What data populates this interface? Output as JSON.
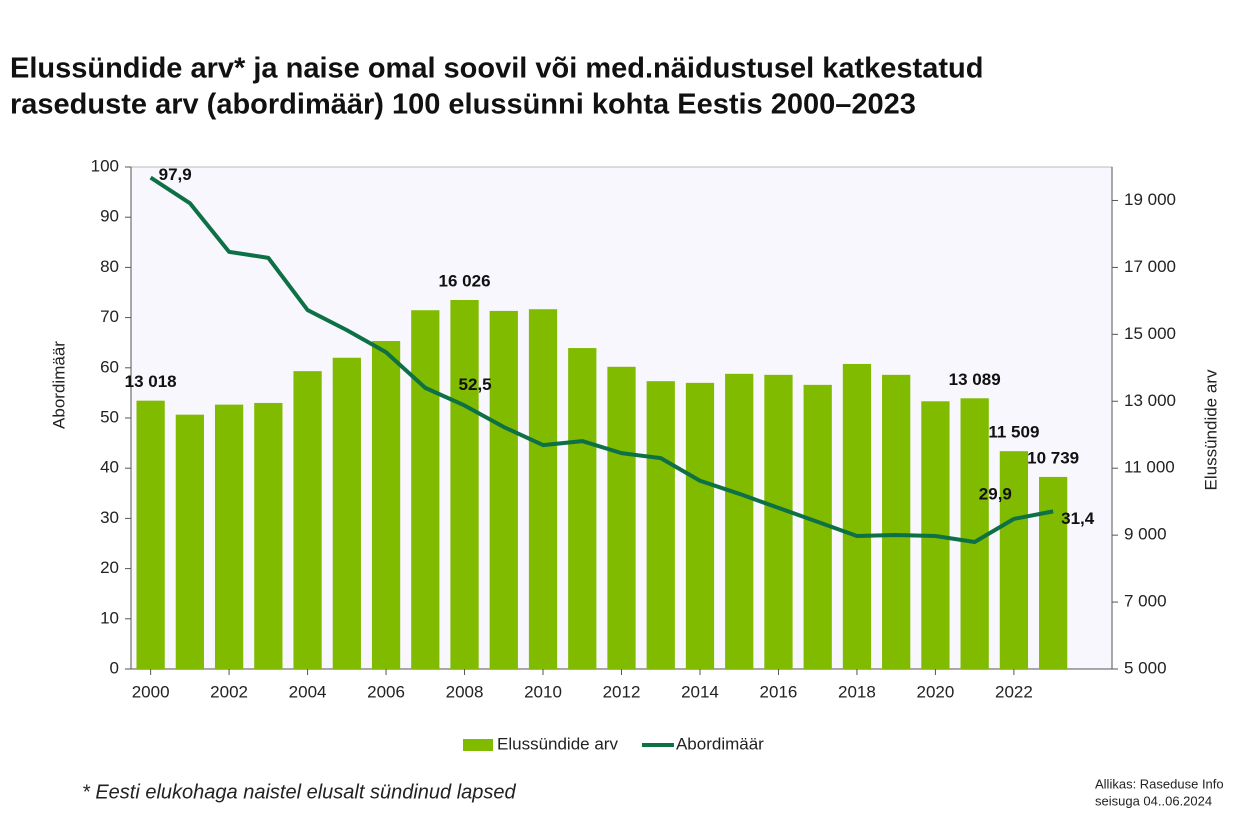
{
  "chart_data": {
    "type": "bar-line",
    "title": [
      "Elussündide arv* ja naise omal soovil või med.näidustusel katkestatud",
      "raseduste arv (abordimäär) 100 elussünni kohta Eestis 2000–2023"
    ],
    "ylabel": "Abordimäär",
    "y2label": "Elussündide arv",
    "x": [
      2000,
      2001,
      2002,
      2003,
      2004,
      2005,
      2006,
      2007,
      2008,
      2009,
      2010,
      2011,
      2012,
      2013,
      2014,
      2015,
      2016,
      2017,
      2018,
      2019,
      2020,
      2021,
      2022,
      2023
    ],
    "xlim": [
      1999.5,
      2024.5
    ],
    "xticks": [
      2000,
      2002,
      2004,
      2006,
      2008,
      2010,
      2012,
      2014,
      2016,
      2018,
      2020,
      2022
    ],
    "ylim": [
      0,
      100
    ],
    "yticks": [
      0,
      10,
      20,
      30,
      40,
      50,
      60,
      70,
      80,
      90,
      100
    ],
    "y2lim": [
      5000,
      20000
    ],
    "y2ticks": [
      {
        "value": 5000,
        "label": "5 000"
      },
      {
        "value": 7000,
        "label": "7 000"
      },
      {
        "value": 9000,
        "label": "9 000"
      },
      {
        "value": 11000,
        "label": "11 000"
      },
      {
        "value": 13000,
        "label": "13 000"
      },
      {
        "value": 15000,
        "label": "15 000"
      },
      {
        "value": 17000,
        "label": "17 000"
      },
      {
        "value": 19000,
        "label": "19 000"
      }
    ],
    "series": [
      {
        "name": "Elussündide arv",
        "type": "bar",
        "axis": "y2",
        "color": "#80bb00",
        "values": [
          13018,
          12600,
          12900,
          12950,
          13900,
          14300,
          14800,
          15720,
          16026,
          15700,
          15750,
          14590,
          14030,
          13600,
          13550,
          13820,
          13790,
          13490,
          14115,
          13790,
          13000,
          13089,
          11509,
          10739
        ],
        "value_labels": [
          "13 018",
          null,
          null,
          null,
          null,
          null,
          null,
          null,
          "16 026",
          null,
          null,
          null,
          null,
          null,
          null,
          null,
          null,
          null,
          null,
          null,
          null,
          "13 089",
          "11 509",
          "10 739"
        ]
      },
      {
        "name": "Abordimäär",
        "type": "line",
        "color": "#0e7045",
        "values": [
          97.9,
          92.8,
          83.1,
          81.9,
          71.5,
          67.5,
          63.1,
          56,
          52.5,
          48.2,
          44.6,
          45.4,
          43,
          42,
          37.5,
          34.9,
          32.1,
          29.3,
          26.5,
          26.7,
          26.5,
          25.3,
          29.9,
          31.4
        ],
        "value_labels": [
          "97,9",
          null,
          null,
          null,
          null,
          null,
          null,
          null,
          "52,5",
          null,
          null,
          null,
          null,
          null,
          null,
          null,
          null,
          null,
          null,
          null,
          null,
          null,
          "29,9",
          "31,4"
        ]
      }
    ],
    "footnote": "* Eesti elukohaga naistel elusalt sündinud lapsed",
    "source": [
      "Allikas: Raseduse Info",
      "seisuga 04..06.2024"
    ]
  }
}
